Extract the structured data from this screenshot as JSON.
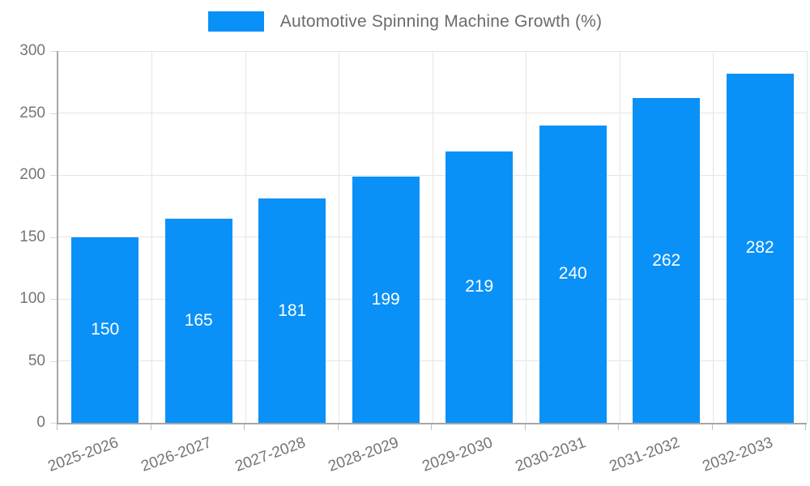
{
  "chart_data": {
    "type": "bar",
    "title": "",
    "legend": "Automotive Spinning Machine Growth (%)",
    "legend_position": "top",
    "categories": [
      "2025-2026",
      "2026-2027",
      "2027-2028",
      "2028-2029",
      "2029-2030",
      "2030-2031",
      "2031-2032",
      "2032-2033"
    ],
    "values": [
      150,
      165,
      181,
      199,
      219,
      240,
      262,
      282
    ],
    "xlabel": "",
    "ylabel": "",
    "ylim": [
      0,
      300
    ],
    "ytick_step": 50,
    "grid": true,
    "bar_color": "#0a91f8",
    "value_label_color": "#ffffff",
    "axis_text_color": "#757575"
  }
}
